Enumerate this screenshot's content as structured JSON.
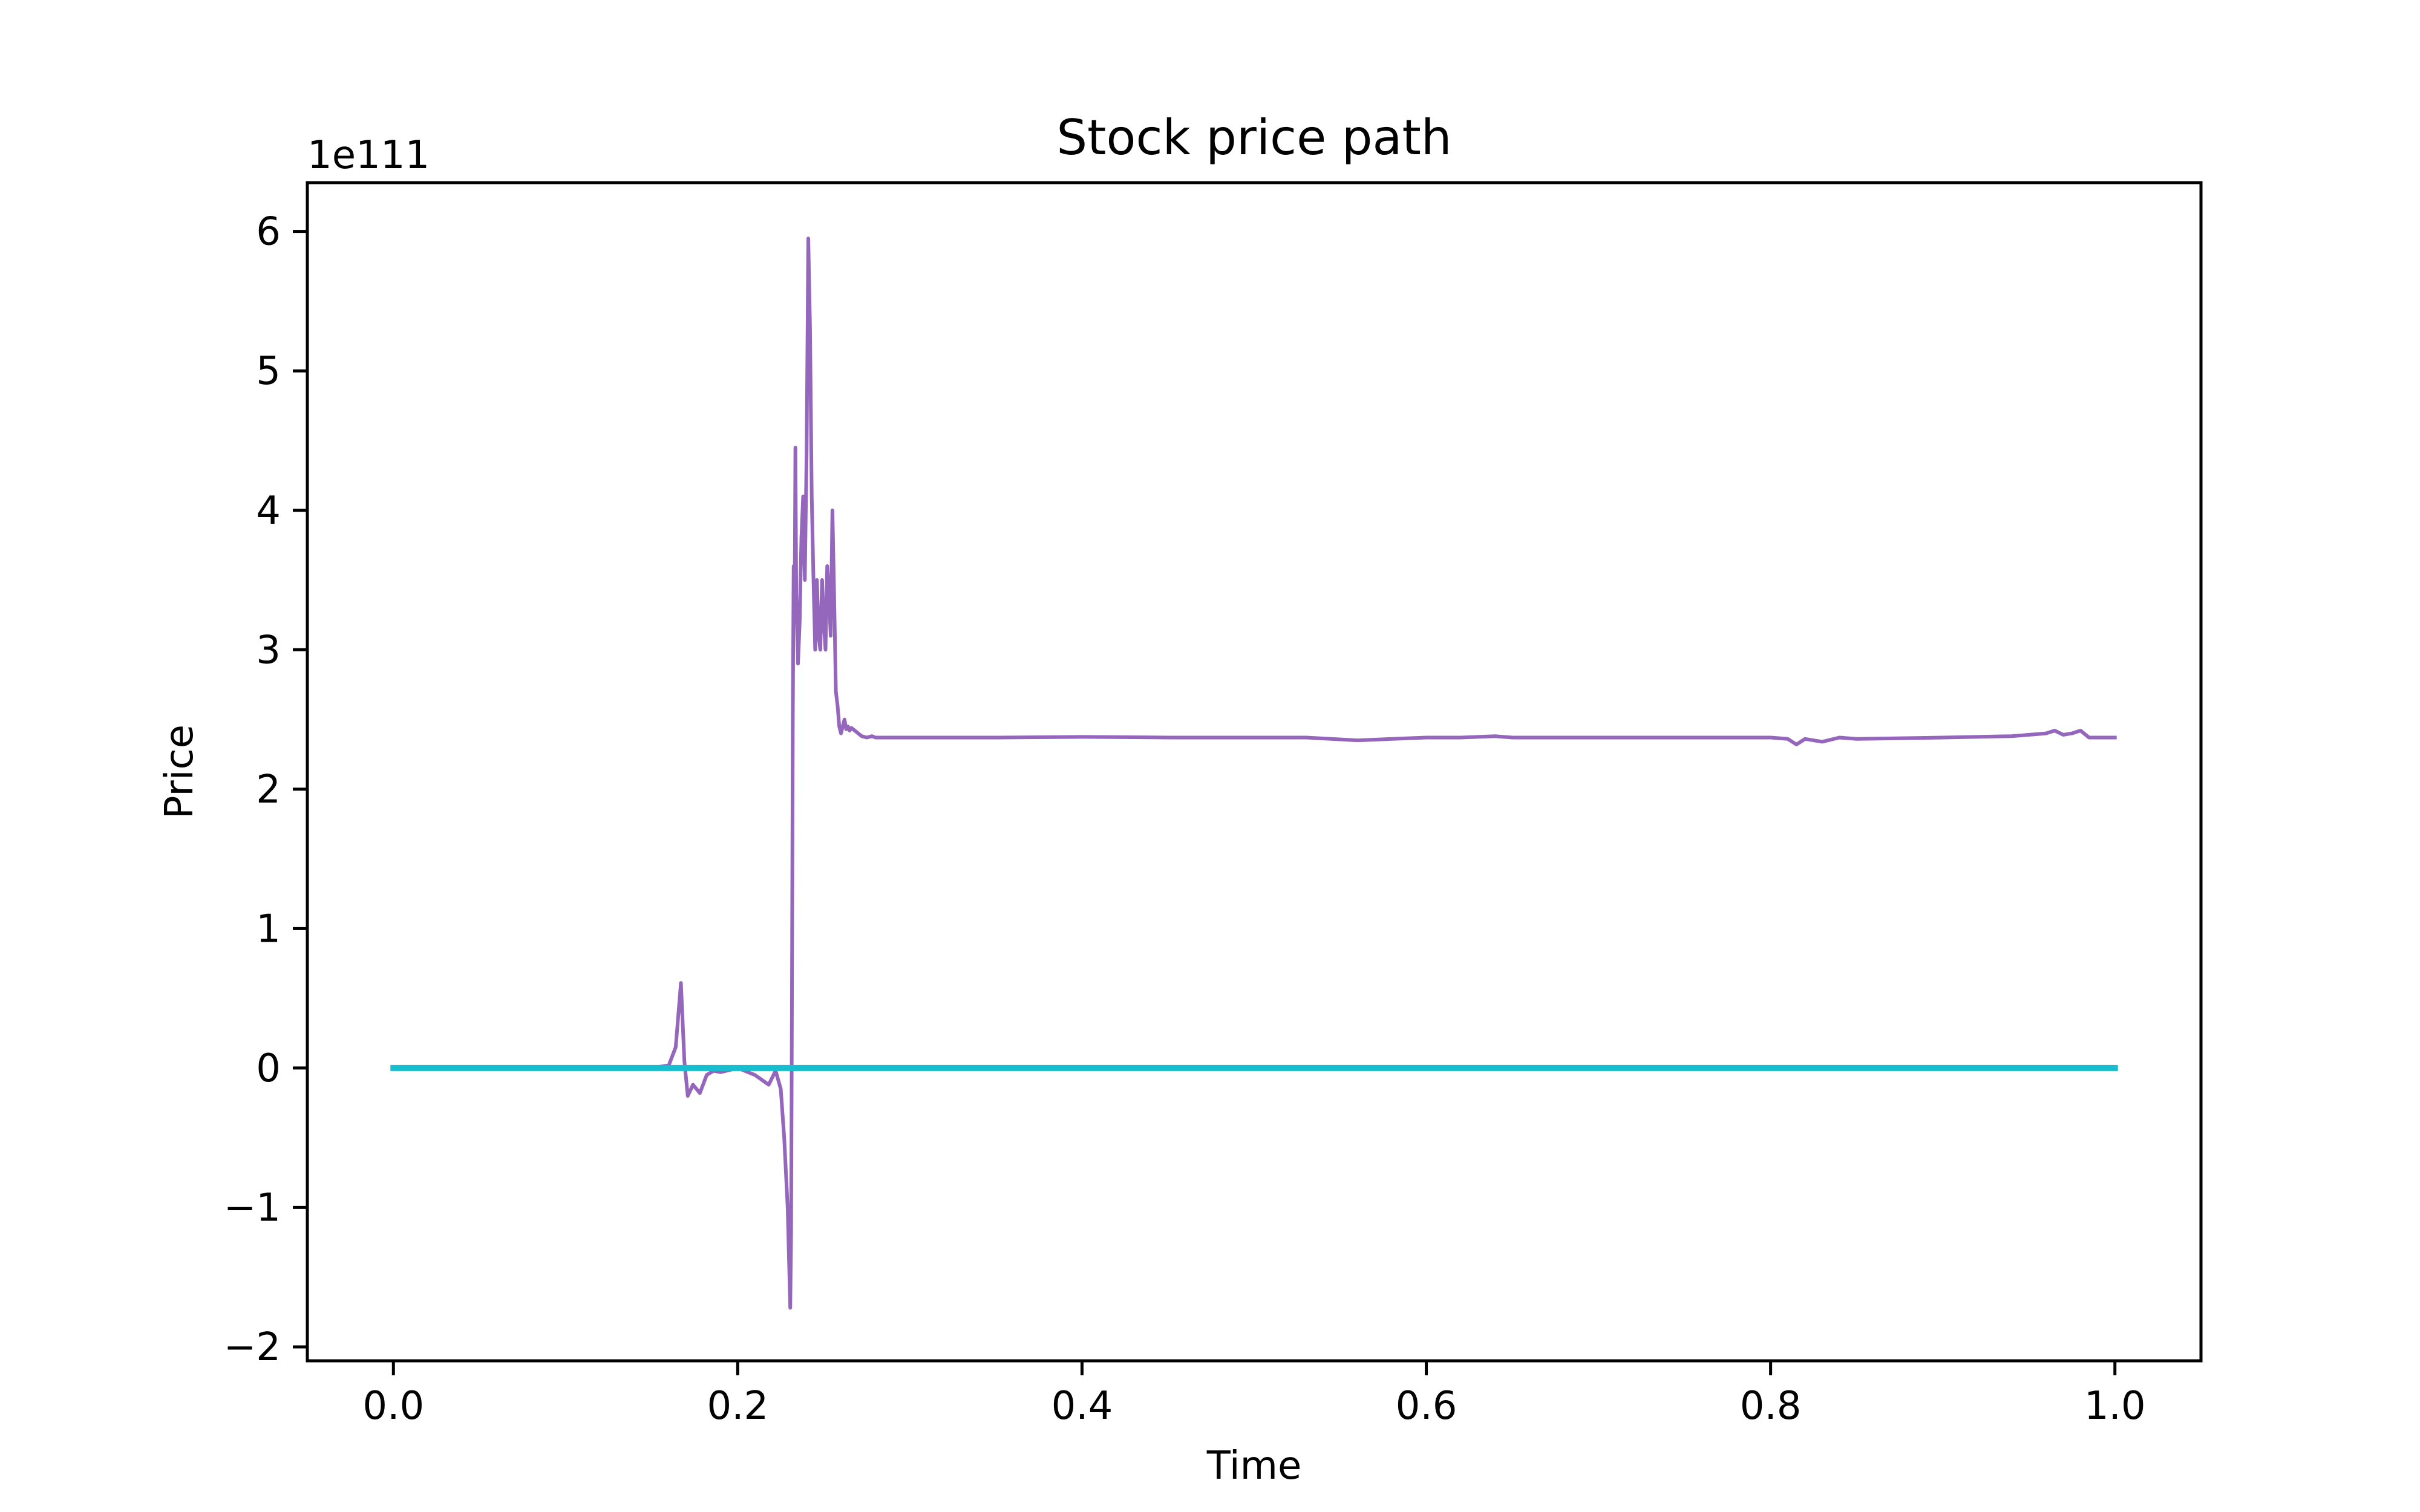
{
  "chart_data": {
    "type": "line",
    "title": "Stock price path",
    "xlabel": "Time",
    "ylabel": "Price",
    "y_offset_text": "1e111",
    "y_scale_factor": 1e+111,
    "xlim": [
      -0.05,
      1.05
    ],
    "ylim": [
      -2.1e+111,
      6.35e+111
    ],
    "x_ticks": [
      0.0,
      0.2,
      0.4,
      0.6,
      0.8,
      1.0
    ],
    "x_tick_labels": [
      "0.0",
      "0.2",
      "0.4",
      "0.6",
      "0.8",
      "1.0"
    ],
    "y_ticks": [
      -2e+111,
      -1e+111,
      0,
      1e+111,
      2e+111,
      3e+111,
      4e+111,
      5e+111,
      6e+111
    ],
    "y_tick_labels": [
      "−2",
      "−1",
      "0",
      "1",
      "2",
      "3",
      "4",
      "5",
      "6"
    ],
    "grid": false,
    "legend": "none",
    "series": [
      {
        "color": "#9467bd",
        "x": [
          0.0,
          0.05,
          0.1,
          0.15,
          0.16,
          0.164,
          0.167,
          0.169,
          0.171,
          0.174,
          0.178,
          0.182,
          0.186,
          0.19,
          0.2,
          0.21,
          0.218,
          0.222,
          0.225,
          0.227,
          0.229,
          0.2305,
          0.231,
          0.2315,
          0.232,
          0.2325,
          0.233,
          0.2335,
          0.234,
          0.235,
          0.236,
          0.237,
          0.238,
          0.239,
          0.24,
          0.241,
          0.242,
          0.243,
          0.244,
          0.245,
          0.246,
          0.247,
          0.248,
          0.249,
          0.25,
          0.251,
          0.252,
          0.253,
          0.254,
          0.255,
          0.256,
          0.257,
          0.258,
          0.259,
          0.26,
          0.261,
          0.262,
          0.263,
          0.264,
          0.265,
          0.266,
          0.268,
          0.27,
          0.272,
          0.275,
          0.278,
          0.28,
          0.29,
          0.3,
          0.35,
          0.4,
          0.45,
          0.5,
          0.53,
          0.56,
          0.58,
          0.6,
          0.62,
          0.64,
          0.65,
          0.7,
          0.75,
          0.8,
          0.81,
          0.815,
          0.82,
          0.83,
          0.84,
          0.85,
          0.9,
          0.94,
          0.96,
          0.965,
          0.97,
          0.975,
          0.98,
          0.985,
          1.0
        ],
        "y": [
          0,
          0,
          0,
          0,
          2e+109,
          1.5e+110,
          6.1e+110,
          5e+109,
          -2e+110,
          -1.2e+110,
          -1.8e+110,
          -5e+109,
          -2e+109,
          -3e+109,
          0.0,
          -5e+109,
          -1.2e+110,
          -2e+109,
          -1.5e+110,
          -5e+110,
          -1e+111,
          -1.72e+111,
          -1.2e+111,
          5e+110,
          2.5e+111,
          3.6e+111,
          3.2e+111,
          4.45e+111,
          3.4e+111,
          2.9e+111,
          3.2e+111,
          3.8e+111,
          4.1e+111,
          3.5e+111,
          4.4e+111,
          5.95e+111,
          5.3e+111,
          4.1e+111,
          3.5e+111,
          3e+111,
          3.5e+111,
          3.1e+111,
          3e+111,
          3.5e+111,
          3.2e+111,
          3e+111,
          3.6e+111,
          3.4e+111,
          3.1e+111,
          4e+111,
          3.4e+111,
          2.7e+111,
          2.6e+111,
          2.45e+111,
          2.4e+111,
          2.45e+111,
          2.5e+111,
          2.43e+111,
          2.45e+111,
          2.42e+111,
          2.44e+111,
          2.42e+111,
          2.4e+111,
          2.38e+111,
          2.37e+111,
          2.38e+111,
          2.37e+111,
          2.37e+111,
          2.37e+111,
          2.37e+111,
          2.375e+111,
          2.37e+111,
          2.37e+111,
          2.37e+111,
          2.35e+111,
          2.36e+111,
          2.37e+111,
          2.37e+111,
          2.38e+111,
          2.37e+111,
          2.37e+111,
          2.37e+111,
          2.37e+111,
          2.36e+111,
          2.32e+111,
          2.36e+111,
          2.34e+111,
          2.37e+111,
          2.36e+111,
          2.37e+111,
          2.38e+111,
          2.4e+111,
          2.42e+111,
          2.39e+111,
          2.4e+111,
          2.42e+111,
          2.37e+111,
          2.37e+111
        ]
      },
      {
        "color": "#17becf",
        "x": [
          0.0,
          1.0
        ],
        "y": [
          0,
          0
        ]
      }
    ]
  }
}
